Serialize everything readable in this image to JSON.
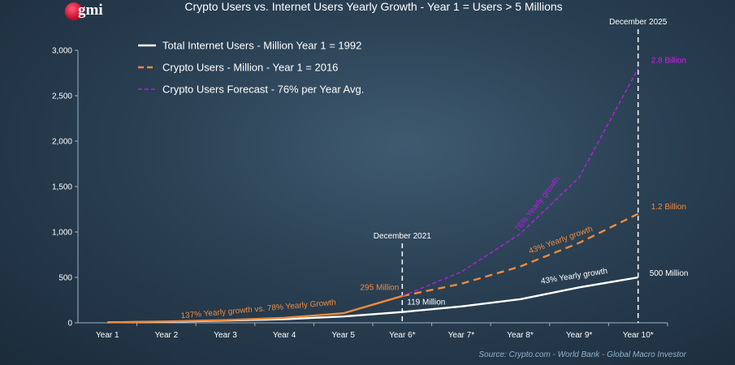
{
  "header": {
    "logo_text": "gmi",
    "title": "Crypto Users vs. Internet Users Yearly Growth - Year 1 = Users > 5 Millions"
  },
  "footer": {
    "source": "Source: Crypto.com - World Bank - Global Macro Investor"
  },
  "colors": {
    "internet": "#ffffff",
    "crypto": "#f08a3c",
    "forecast": "#b21fe0",
    "axis_text": "#ffffff",
    "label_orange": "#f08a3c",
    "label_magenta": "#d020e8"
  },
  "chart_data": {
    "type": "line",
    "title": "Crypto Users vs. Internet Users Yearly Growth - Year 1 = Users > 5 Millions",
    "xlabel": "",
    "ylabel": "",
    "categories": [
      "Year 1",
      "Year 2",
      "Year 3",
      "Year 4",
      "Year 5",
      "Year 6*",
      "Year 7*",
      "Year 8*",
      "Year 9*",
      "Year 10*"
    ],
    "ylim": [
      0,
      3000
    ],
    "yticks": [
      0,
      500,
      1000,
      1500,
      2000,
      2500,
      3000
    ],
    "ytick_labels": [
      "0",
      "500",
      "1,000",
      "1,500",
      "2,000",
      "2,500",
      "3,000"
    ],
    "grid": false,
    "legend_position": "top-left",
    "series": [
      {
        "name": "Total Internet Users - Million Year 1 = 1992",
        "style": "solid",
        "color": "#ffffff",
        "values": [
          5,
          12,
          25,
          40,
          70,
          119,
          180,
          260,
          390,
          500
        ]
      },
      {
        "name": "Crypto Users - Million - Year 1 = 2016",
        "style": "dashed",
        "color": "#f08a3c",
        "values": [
          5,
          15,
          30,
          55,
          105,
          295,
          430,
          620,
          880,
          1200
        ]
      },
      {
        "name": "Crypto Users Forecast - 76% per Year Avg.",
        "style": "dashed-thin",
        "color": "#b21fe0",
        "values": [
          null,
          null,
          null,
          null,
          null,
          295,
          560,
          980,
          1600,
          2800
        ]
      }
    ],
    "vlines": [
      {
        "x": "Year 6*",
        "label": "December 2021"
      },
      {
        "x": "Year 10*",
        "label": "December 2025"
      }
    ],
    "annotations": [
      {
        "text": "2.8 Billion",
        "x": "Year 10*",
        "y": 2880,
        "color": "#d020e8"
      },
      {
        "text": "1.2 Billion",
        "x": "Year 10*",
        "y": 1260,
        "color": "#f08a3c"
      },
      {
        "text": "500 Million",
        "x": "Year 10*",
        "y": 520,
        "color": "#ffffff"
      },
      {
        "text": "295 Million",
        "x": "Year 6*",
        "y": 380,
        "color": "#f08a3c"
      },
      {
        "text": "119 Million",
        "x": "Year 6*",
        "y": 210,
        "color": "#ffffff"
      },
      {
        "text": "137% Yearly growth vs. 78% Yearly Growth",
        "x": "Year 3",
        "y": 130,
        "color": "#f08a3c"
      },
      {
        "text": "43% Yearly growth",
        "x": "Year 8*",
        "y": 720,
        "color": "#f08a3c"
      },
      {
        "text": "43% Yearly growth",
        "x": "Year 8*",
        "y": 400,
        "color": "#ffffff"
      },
      {
        "text": "76% Yearly growth",
        "x": "Year 8*",
        "y": 1400,
        "color": "#b21fe0"
      }
    ]
  }
}
